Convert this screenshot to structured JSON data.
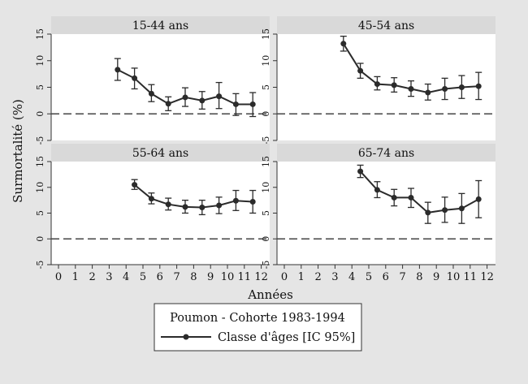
{
  "figure": {
    "ylabel": "Surmortalité (%)",
    "xlabel": "Années",
    "legend_title": "Poumon - Cohorte 1983-1994",
    "legend_entry": "Classe d'âges [IC 95%]",
    "colors": {
      "background": "#e5e5e5",
      "plot_area": "#ffffff",
      "panel_header": "#d9d9d9",
      "line": "#2b2b2b",
      "reference_line": "#444444"
    }
  },
  "chart_data": [
    {
      "type": "line",
      "title": "15-44 ans",
      "x": [
        3.5,
        4.5,
        5.5,
        6.5,
        7.5,
        8.5,
        9.5,
        10.5,
        11.5
      ],
      "y": [
        8.3,
        6.7,
        3.8,
        1.9,
        3.1,
        2.5,
        3.3,
        1.8,
        1.8
      ],
      "y_lower": [
        6.3,
        4.7,
        2.3,
        0.6,
        1.4,
        0.9,
        1.0,
        -0.3,
        -0.5
      ],
      "y_upper": [
        10.4,
        8.6,
        5.5,
        3.2,
        4.9,
        4.2,
        5.9,
        3.8,
        4.0
      ],
      "xlim": [
        0,
        12
      ],
      "ylim": [
        -5,
        15
      ],
      "xticks": [
        0,
        1,
        2,
        3,
        4,
        5,
        6,
        7,
        8,
        9,
        10,
        11,
        12
      ],
      "yticks": [
        -5,
        0,
        5,
        10,
        15
      ],
      "reference_line": 0,
      "grid": false
    },
    {
      "type": "line",
      "title": "45-54 ans",
      "x": [
        3.5,
        4.5,
        5.5,
        6.5,
        7.5,
        8.5,
        9.5,
        10.5,
        11.5
      ],
      "y": [
        13.2,
        8.1,
        5.6,
        5.4,
        4.7,
        4.0,
        4.7,
        5.0,
        5.2
      ],
      "y_lower": [
        11.8,
        6.7,
        4.5,
        4.1,
        3.3,
        2.6,
        2.7,
        2.9,
        2.7
      ],
      "y_upper": [
        14.6,
        9.5,
        7.0,
        6.8,
        6.2,
        5.6,
        6.7,
        7.2,
        7.8
      ],
      "xlim": [
        0,
        12
      ],
      "ylim": [
        -5,
        15
      ],
      "xticks": [
        0,
        1,
        2,
        3,
        4,
        5,
        6,
        7,
        8,
        9,
        10,
        11,
        12
      ],
      "yticks": [
        -5,
        0,
        5,
        10,
        15
      ],
      "reference_line": 0,
      "grid": false
    },
    {
      "type": "line",
      "title": "55-64 ans",
      "x": [
        4.5,
        5.5,
        6.5,
        7.5,
        8.5,
        9.5,
        10.5,
        11.5
      ],
      "y": [
        10.5,
        7.8,
        6.7,
        6.2,
        6.1,
        6.5,
        7.4,
        7.2
      ],
      "y_lower": [
        9.6,
        6.8,
        5.6,
        5.0,
        4.7,
        4.9,
        5.5,
        5.0
      ],
      "y_upper": [
        11.5,
        8.9,
        7.9,
        7.5,
        7.5,
        8.1,
        9.4,
        9.4
      ],
      "xlim": [
        0,
        12
      ],
      "ylim": [
        -5,
        15
      ],
      "xticks": [
        0,
        1,
        2,
        3,
        4,
        5,
        6,
        7,
        8,
        9,
        10,
        11,
        12
      ],
      "yticks": [
        -5,
        0,
        5,
        10,
        15
      ],
      "reference_line": 0,
      "grid": false
    },
    {
      "type": "line",
      "title": "65-74 ans",
      "x": [
        4.5,
        5.5,
        6.5,
        7.5,
        8.5,
        9.5,
        10.5,
        11.5
      ],
      "y": [
        13.1,
        9.5,
        8.0,
        8.0,
        5.1,
        5.6,
        5.9,
        7.7
      ],
      "y_lower": [
        11.9,
        8.0,
        6.4,
        6.1,
        3.0,
        3.2,
        3.0,
        4.1
      ],
      "y_upper": [
        14.3,
        11.1,
        9.6,
        9.8,
        7.1,
        8.1,
        8.8,
        11.3
      ],
      "xlim": [
        0,
        12
      ],
      "ylim": [
        -5,
        15
      ],
      "xticks": [
        0,
        1,
        2,
        3,
        4,
        5,
        6,
        7,
        8,
        9,
        10,
        11,
        12
      ],
      "yticks": [
        -5,
        0,
        5,
        10,
        15
      ],
      "reference_line": 0,
      "grid": false
    }
  ]
}
